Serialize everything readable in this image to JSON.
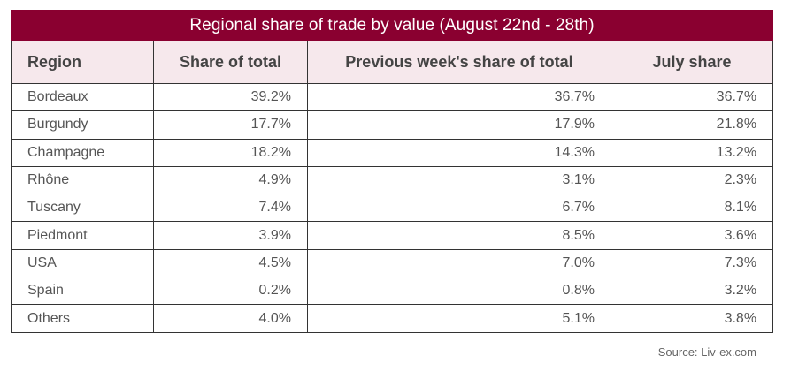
{
  "chart_data": {
    "type": "table",
    "title": "Regional share of trade by value (August 22nd  - 28th)",
    "columns": [
      "Region",
      "Share of total",
      "Previous week's share of total",
      "July share"
    ],
    "rows": [
      {
        "region": "Bordeaux",
        "share": "39.2%",
        "prev_week": "36.7%",
        "july": "36.7%"
      },
      {
        "region": "Burgundy",
        "share": "17.7%",
        "prev_week": "17.9%",
        "july": "21.8%"
      },
      {
        "region": "Champagne",
        "share": "18.2%",
        "prev_week": "14.3%",
        "july": "13.2%"
      },
      {
        "region": "Rhône",
        "share": "4.9%",
        "prev_week": "3.1%",
        "july": "2.3%"
      },
      {
        "region": "Tuscany",
        "share": "7.4%",
        "prev_week": "6.7%",
        "july": "8.1%"
      },
      {
        "region": "Piedmont",
        "share": "3.9%",
        "prev_week": "8.5%",
        "july": "3.6%"
      },
      {
        "region": "USA",
        "share": "4.5%",
        "prev_week": "7.0%",
        "july": "7.3%"
      },
      {
        "region": "Spain",
        "share": "0.2%",
        "prev_week": "0.8%",
        "july": "3.2%"
      },
      {
        "region": "Others",
        "share": "4.0%",
        "prev_week": "5.1%",
        "july": "3.8%"
      }
    ],
    "source": "Source: Liv-ex.com"
  },
  "colors": {
    "title_background": "#8a0030",
    "header_background": "#f6e8ec"
  }
}
